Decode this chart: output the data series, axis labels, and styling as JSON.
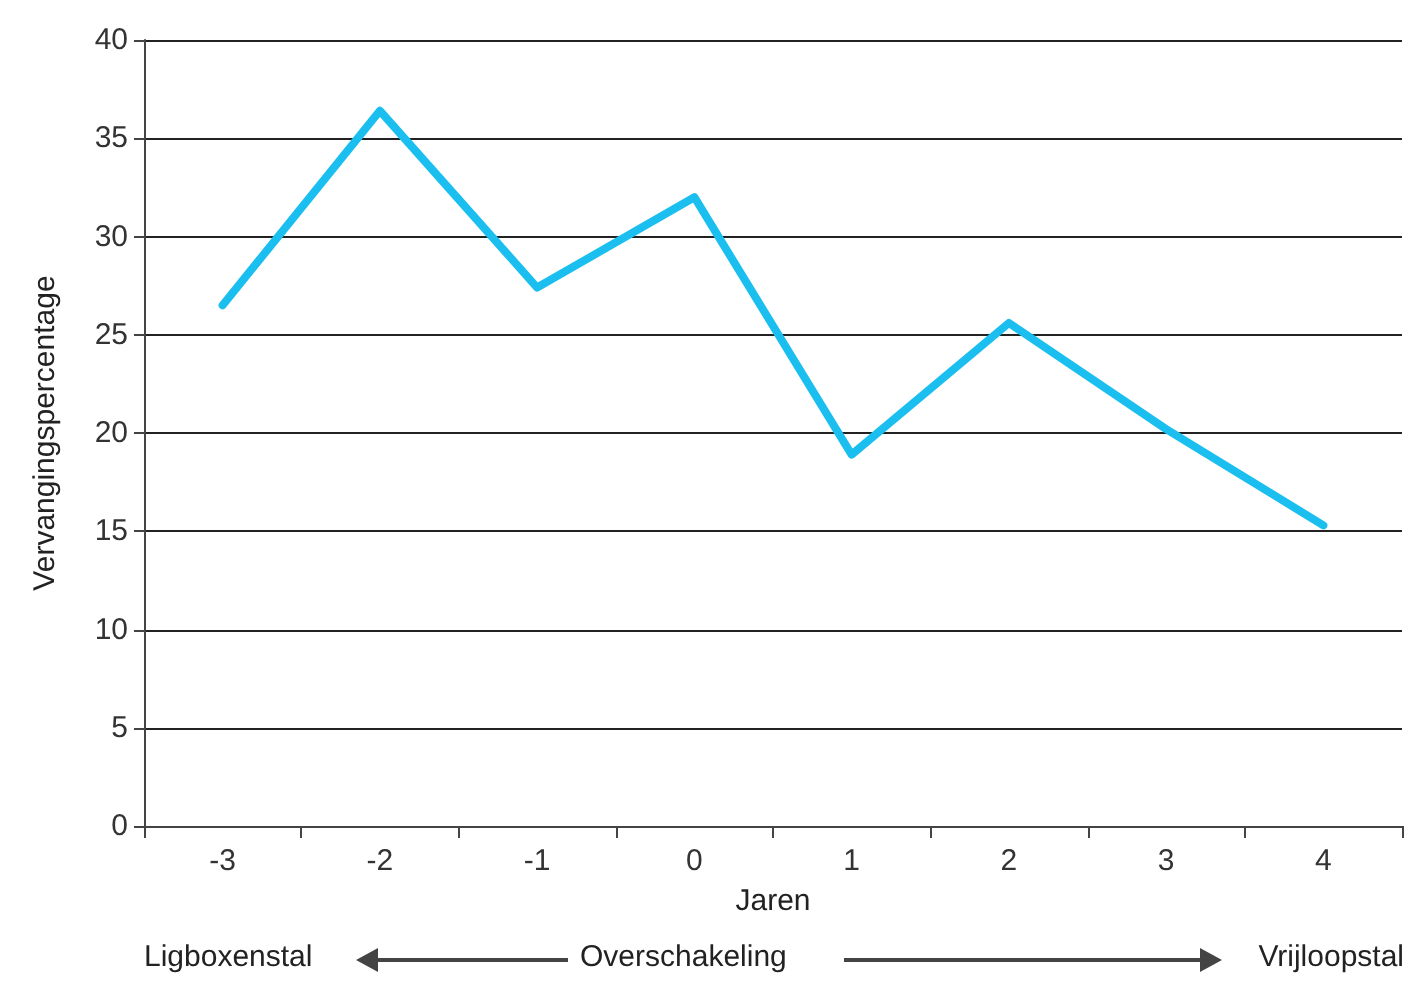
{
  "chart_data": {
    "type": "line",
    "xlabel": "Jaren",
    "ylabel": "Vervangingspercentage",
    "categories": [
      "-3",
      "-2",
      "-1",
      "0",
      "1",
      "2",
      "3",
      "4"
    ],
    "series": [
      {
        "color": "#1bbfef",
        "values": [
          26.5,
          36.4,
          27.4,
          32.0,
          18.9,
          25.6,
          20.2,
          15.3
        ]
      }
    ],
    "ylim": [
      0,
      40
    ],
    "yticks": [
      0,
      5,
      10,
      15,
      20,
      25,
      30,
      35,
      40
    ],
    "grid": "y",
    "marker": "none",
    "line_style": "solid",
    "annotations": [
      "Ligboxenstal",
      "Overschakeling",
      "Vrijloopstal"
    ]
  }
}
